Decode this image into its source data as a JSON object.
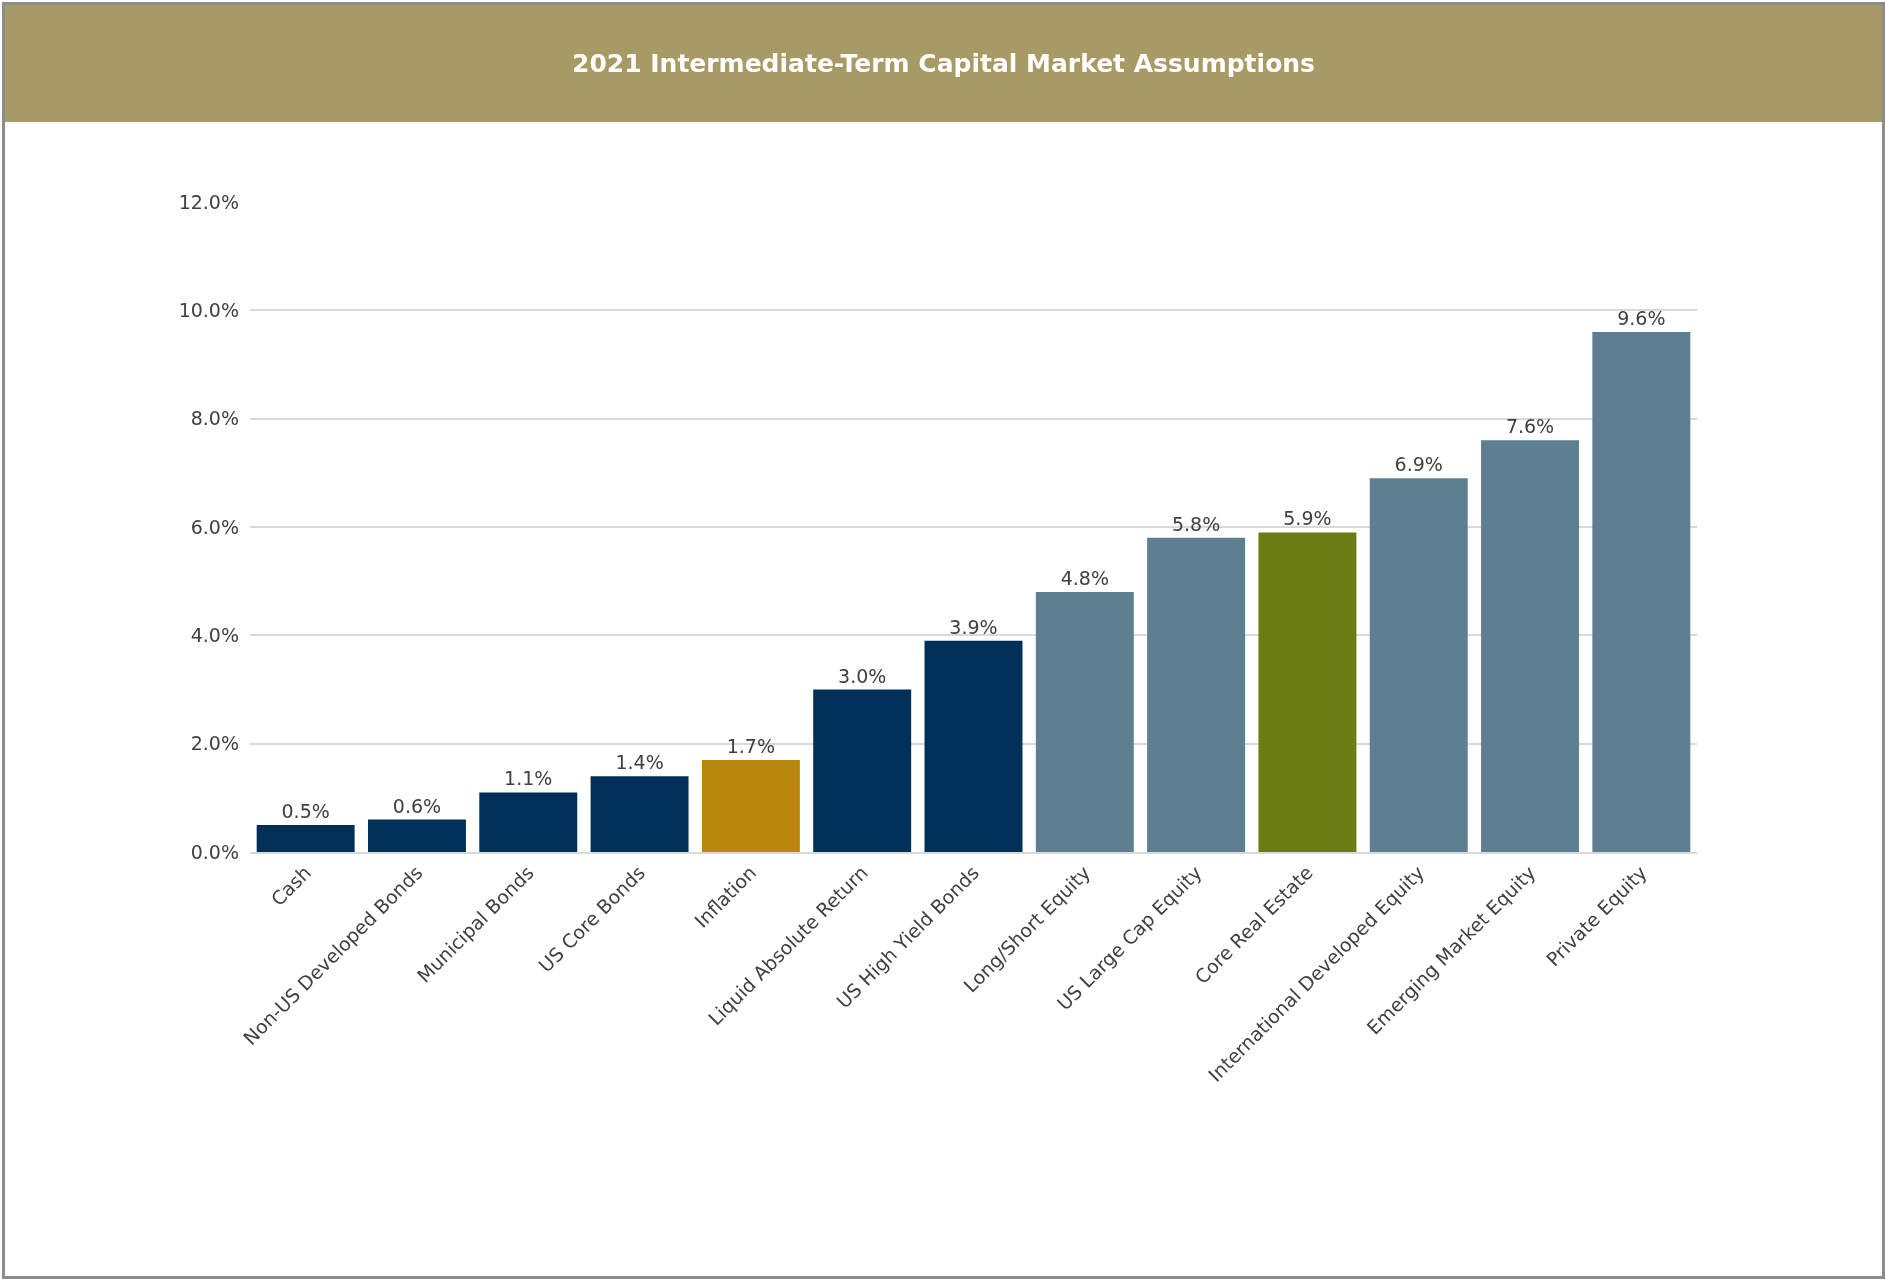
{
  "chart_data": {
    "type": "bar",
    "title": "2021 Intermediate-Term Capital Market Assumptions",
    "categories": [
      "Cash",
      "Non-US Developed Bonds",
      "Municipal Bonds",
      "US Core Bonds",
      "Inflation",
      "Liquid Absolute Return",
      "US High Yield Bonds",
      "Long/Short Equity",
      "US Large Cap Equity",
      "Core Real Estate",
      "International Developed Equity",
      "Emerging Market Equity",
      "Private Equity"
    ],
    "values": [
      0.5,
      0.6,
      1.1,
      1.4,
      1.7,
      3.0,
      3.9,
      4.8,
      5.8,
      5.9,
      6.9,
      7.6,
      9.6
    ],
    "value_labels": [
      "0.5%",
      "0.6%",
      "1.1%",
      "1.4%",
      "1.7%",
      "3.0%",
      "3.9%",
      "4.8%",
      "5.8%",
      "5.9%",
      "6.9%",
      "7.6%",
      "9.6%"
    ],
    "colors": [
      "#003057",
      "#003057",
      "#003057",
      "#003057",
      "#b8860b",
      "#003057",
      "#003057",
      "#5d7f91",
      "#5d7f91",
      "#6b7c12",
      "#5d7f91",
      "#5d7f91",
      "#5d7f91"
    ],
    "ylim": [
      0,
      12
    ],
    "yticks": [
      {
        "value": 0,
        "label": "0.0%"
      },
      {
        "value": 2,
        "label": "2.0%"
      },
      {
        "value": 4,
        "label": "4.0%"
      },
      {
        "value": 6,
        "label": "6.0%"
      },
      {
        "value": 8,
        "label": "8.0%"
      },
      {
        "value": 10,
        "label": "10.0%"
      },
      {
        "value": 12,
        "label": "12.0%"
      }
    ],
    "grid": "y"
  }
}
